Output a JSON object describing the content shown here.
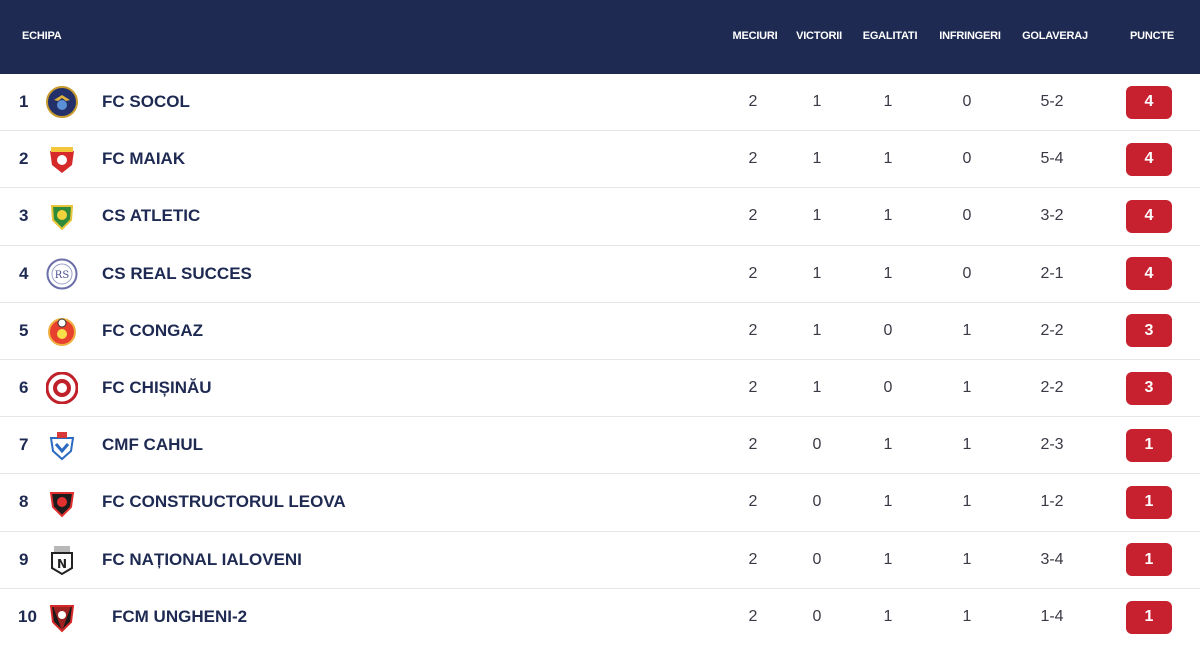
{
  "header": {
    "team": "ECHIPA",
    "matches": "MECIURI",
    "wins": "VICTORII",
    "draws": "EGALITATI",
    "losses": "INFRINGERI",
    "goal_diff": "GOLAVERAJ",
    "points": "PUNCTE"
  },
  "colors": {
    "header_bg": "#1e2a52",
    "points_badge": "#c7202f",
    "text": "#1e2a52"
  },
  "rows": [
    {
      "pos": "1",
      "team": "FC SOCOL",
      "logo": "socol-crest-icon",
      "matches": "2",
      "wins": "1",
      "draws": "1",
      "losses": "0",
      "goals": "5-2",
      "points": "4"
    },
    {
      "pos": "2",
      "team": "FC MAIAK",
      "logo": "maiak-crest-icon",
      "matches": "2",
      "wins": "1",
      "draws": "1",
      "losses": "0",
      "goals": "5-4",
      "points": "4"
    },
    {
      "pos": "3",
      "team": "CS ATLETIC",
      "logo": "atletic-crest-icon",
      "matches": "2",
      "wins": "1",
      "draws": "1",
      "losses": "0",
      "goals": "3-2",
      "points": "4"
    },
    {
      "pos": "4",
      "team": "CS REAL SUCCES",
      "logo": "real-succes-crest-icon",
      "matches": "2",
      "wins": "1",
      "draws": "1",
      "losses": "0",
      "goals": "2-1",
      "points": "4"
    },
    {
      "pos": "5",
      "team": "FC CONGAZ",
      "logo": "congaz-crest-icon",
      "matches": "2",
      "wins": "1",
      "draws": "0",
      "losses": "1",
      "goals": "2-2",
      "points": "3"
    },
    {
      "pos": "6",
      "team": "FC CHIȘINĂU",
      "logo": "chisinau-crest-icon",
      "matches": "2",
      "wins": "1",
      "draws": "0",
      "losses": "1",
      "goals": "2-2",
      "points": "3"
    },
    {
      "pos": "7",
      "team": "CMF CAHUL",
      "logo": "cahul-crest-icon",
      "matches": "2",
      "wins": "0",
      "draws": "1",
      "losses": "1",
      "goals": "2-3",
      "points": "1"
    },
    {
      "pos": "8",
      "team": "FC CONSTRUCTORUL LEOVA",
      "logo": "constructorul-crest-icon",
      "matches": "2",
      "wins": "0",
      "draws": "1",
      "losses": "1",
      "goals": "1-2",
      "points": "1"
    },
    {
      "pos": "9",
      "team": "FC NAȚIONAL IALOVENI",
      "logo": "national-crest-icon",
      "matches": "2",
      "wins": "0",
      "draws": "1",
      "losses": "1",
      "goals": "3-4",
      "points": "1"
    },
    {
      "pos": "10",
      "team": "FCM UNGHENI-2",
      "logo": "ungheni-crest-icon",
      "matches": "2",
      "wins": "0",
      "draws": "1",
      "losses": "1",
      "goals": "1-4",
      "points": "1"
    }
  ]
}
